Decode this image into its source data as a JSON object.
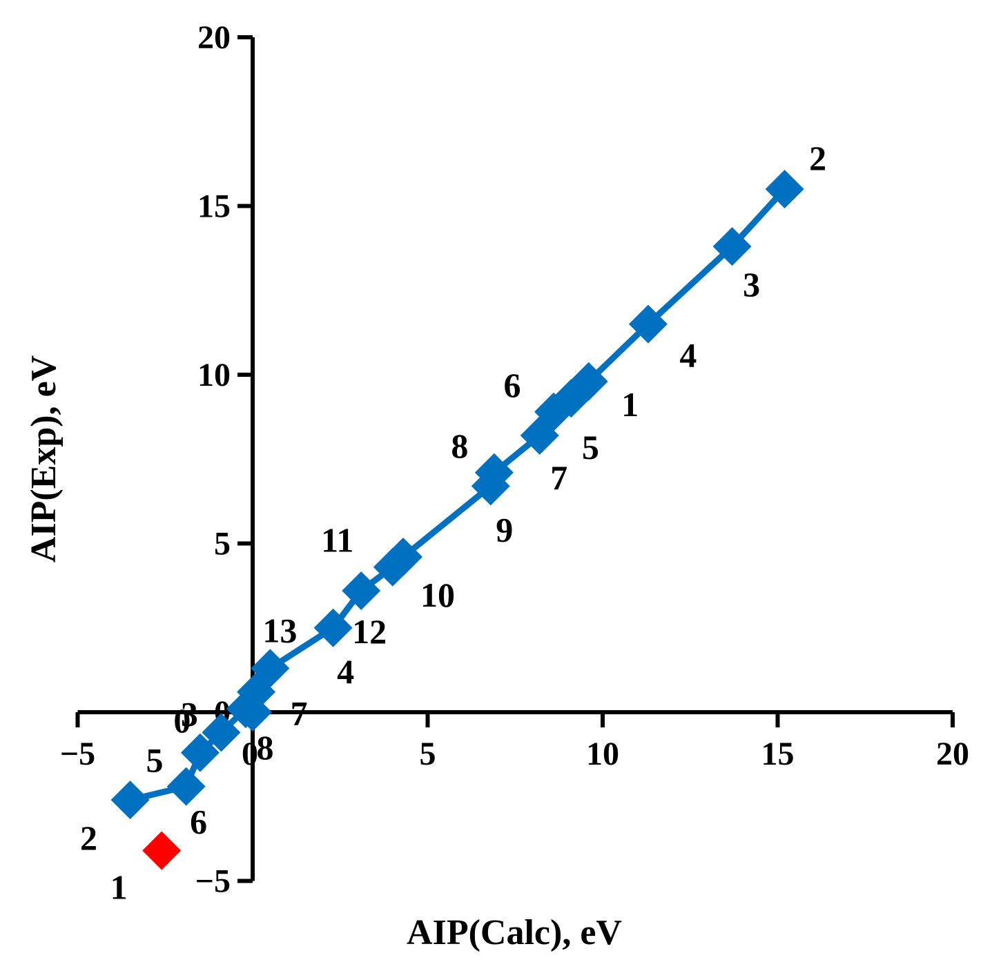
{
  "chart_data": {
    "type": "scatter",
    "title": "",
    "xlabel": "AIP(Calc), eV",
    "ylabel": "AIP(Exp), eV",
    "xlim": [
      -5,
      20
    ],
    "ylim": [
      -5,
      20
    ],
    "x_ticks": [
      "−5",
      "0",
      "5",
      "10",
      "15",
      "20"
    ],
    "y_ticks": [
      "−5",
      "0",
      "5",
      "10",
      "15",
      "20"
    ],
    "grid": false,
    "colors": {
      "main": "#0070C0",
      "outlier": "#FF0000",
      "axis": "#000000"
    },
    "series": [
      {
        "color": "#0070C0",
        "marker": "diamond",
        "connected": true,
        "points": [
          {
            "x": 9.6,
            "y": 9.8,
            "label": "1"
          },
          {
            "x": 15.2,
            "y": 15.5,
            "label": "2"
          },
          {
            "x": 13.7,
            "y": 13.8,
            "label": "3"
          },
          {
            "x": 11.3,
            "y": 11.5,
            "label": "4"
          },
          {
            "x": 9.1,
            "y": 9.3,
            "label": "5"
          },
          {
            "x": 8.6,
            "y": 8.9,
            "label": "6"
          },
          {
            "x": 8.2,
            "y": 8.2,
            "label": "7"
          },
          {
            "x": 6.9,
            "y": 7.1,
            "label": "8"
          },
          {
            "x": 6.8,
            "y": 6.7,
            "label": "9"
          },
          {
            "x": 4.3,
            "y": 4.6,
            "label": "10"
          },
          {
            "x": 4.0,
            "y": 4.3,
            "label": "11"
          },
          {
            "x": 3.1,
            "y": 3.6,
            "label": "12"
          },
          {
            "x": 0.5,
            "y": 1.3,
            "label": "13"
          },
          {
            "x": 2.3,
            "y": 2.5,
            "label": "4"
          },
          {
            "x": 0.1,
            "y": 0.6,
            "label": "7"
          },
          {
            "x": -0.2,
            "y": 0.1,
            "label": "0"
          },
          {
            "x": -0.9,
            "y": -0.6,
            "label": "3"
          },
          {
            "x": -1.5,
            "y": -1.2,
            "label": "5"
          },
          {
            "x": -1.9,
            "y": -2.2,
            "label": "6"
          },
          {
            "x": -3.5,
            "y": -2.6,
            "label": "2"
          },
          {
            "x": 0.0,
            "y": 0.0,
            "label": "8"
          }
        ]
      },
      {
        "color": "#FF0000",
        "marker": "diamond",
        "connected": false,
        "points": [
          {
            "x": -2.6,
            "y": -4.1,
            "label": "1"
          }
        ]
      }
    ]
  }
}
